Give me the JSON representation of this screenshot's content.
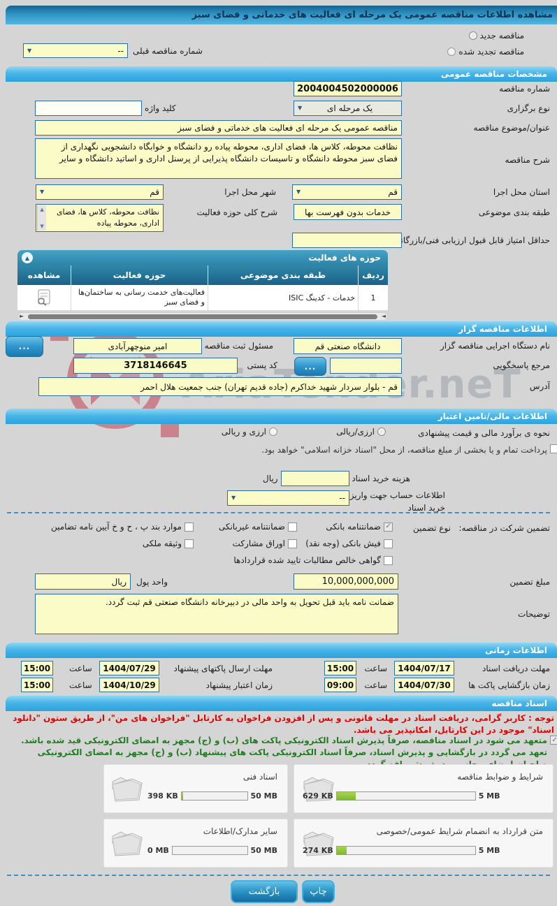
{
  "page": {
    "title": "مشاهده اطلاعات مناقصه عمومی یک مرحله ای فعالیت های خدماتی و فضای سبز"
  },
  "icons": {
    "dropdown": "▼",
    "collapse": "▲",
    "check": "✓",
    "arrow_left": "◄",
    "arrow_right": "►",
    "arrow_up": "▲",
    "arrow_down": "▼"
  },
  "top": {
    "radio_new": "مناقصه جدید",
    "radio_renewed": "مناقصه تجدید شده",
    "prev_number_label": "شماره مناقصه قبلی",
    "prev_number_value": "--"
  },
  "specs": {
    "header": "مشخصات مناقصه عمومی",
    "tender_no_label": "شماره مناقصه",
    "tender_no": "2004004502000006",
    "type_label": "نوع برگزاری",
    "type_value": "یک مرحله ای",
    "keyword_label": "کلید واژه",
    "keyword_value": "",
    "subject_label": "عنوان/موضوع مناقصه",
    "subject_value": "مناقصه عمومی یک مرحله ای فعالیت های خدماتی و فضای سبز",
    "desc_label": "شرح مناقصه",
    "desc_value": "نظافت محوطه، کلاس ها، فضای اداری، محوطه پیاده رو دانشگاه و خوابگاه دانشجویی نگهداری از فضای سبز محوطه دانشگاه و تاسیسات دانشگاه پذیرایی از پرسنل اداری و اساتید دانشگاه و سایر",
    "province_label": "استان محل اجرا",
    "province_value": "قم",
    "city_label": "شهر محل اجرا",
    "city_value": "قم",
    "category_label": "طبقه بندی موضوعی",
    "category_value": "خدمات بدون فهرست بها",
    "scope_label": "شرح کلی حوزه فعالیت",
    "scope_value": "نظافت محوطه، کلاس ها، فضای اداری، محوطه پیاده",
    "min_score_label": "حداقل امتیاز قابل قبول ارزیابی فنی/بازرگانی",
    "min_score_value": ""
  },
  "activity_table": {
    "header": "حوزه های فعالیت",
    "columns": [
      "ردیف",
      "طبقه بندی موضوعی",
      "حوزه فعالیت",
      "مشاهده"
    ],
    "rows": [
      {
        "index": "1",
        "category": "خدمات - کدینگ ISIC",
        "area": "فعالیت‌های خدمت رسانی به ساختمان‌ها و فضای سبز"
      }
    ]
  },
  "agency": {
    "header": "اطلاعات مناقصه گزار",
    "name_label": "نام دستگاه اجرایی مناقصه گزار",
    "name_value": "دانشگاه صنعتی قم",
    "registrar_label": "مسئول ثبت مناقصه",
    "registrar_value": "امیر منوچهرآبادی",
    "contact_label": "مرجع پاسخگویی",
    "contact_value": "",
    "postal_label": "کد پستی",
    "postal_value": "3718146645",
    "address_label": "آدرس",
    "address_value": "قم - بلوار سردار شهید خداکرم (جاده قدیم تهران) جنب جمعیت هلال احمر",
    "more_button": "..."
  },
  "financial": {
    "header": "اطلاعات مالی/تامین اعتبار",
    "estimate_label": "نحوه ی برآورد مالی و قیمت پیشنهادی",
    "radio_rial": "ارزی/ریالی",
    "radio_both": "ارزی و ریالی",
    "treasury_note": "پرداخت تمام و یا بخشی از مبلغ مناقصه، از محل \"اسناد خزانه اسلامی\" خواهد بود.",
    "doc_cost_label": "هزینه خرید اسناد",
    "doc_cost_value": "",
    "doc_cost_unit": "ریال",
    "account_label_line1": "اطلاعات حساب جهت واریز هزینه",
    "account_label_line2": "خرید اسناد",
    "account_value": "--"
  },
  "guarantee": {
    "title": "تضمین شرکت در مناقصه:",
    "type_label": "نوع تضمین",
    "opt_bank": "ضمانتنامه بانکی",
    "opt_nonbank": "ضمانتنامه غیربانکی",
    "opt_clauses": "موارد بند پ ، ح و خ آیین نامه تضامین",
    "opt_receipt": "فیش بانکی (وجه نقد)",
    "opt_bonds": "اوراق مشارکت",
    "opt_property": "وثیقه ملکی",
    "opt_claims": "گواهی خالص مطالبات تایید شده قراردادها",
    "amount_label": "مبلغ تضمین",
    "amount_value": "10,000,000,000",
    "currency_label": "واحد پول",
    "currency_value": "ریال",
    "notes_label": "توضیحات",
    "notes_value": "ضمانت نامه باید قبل تحویل به واحد مالی در دبیرخانه دانشگاه صنعتی قم ثبت گردد."
  },
  "schedule": {
    "header": "اطلاعات زمانی",
    "hour_label": "ساعت",
    "items": [
      {
        "label": "مهلت دریافت اسناد",
        "date": "1404/07/17",
        "time": "15:00"
      },
      {
        "label": "مهلت ارسال پاکتهای پیشنهاد",
        "date": "1404/07/29",
        "time": "15:00"
      },
      {
        "label": "زمان بازگشایی پاکت ها",
        "date": "1404/07/30",
        "time": "09:00"
      },
      {
        "label": "زمان اعتبار پیشنهاد",
        "date": "1404/10/29",
        "time": "15:00"
      }
    ]
  },
  "documents": {
    "header": "اسناد مناقصه",
    "notice_red": "توجه : کاربر گرامی، دریافت اسناد در مهلت قانونی و پس از افزودن فراخوان به کارتابل \"فراخوان های من\"، از طریق ستون \"دانلود اسناد\" موجود در این کارتابل، امکانپذیر می باشد.",
    "notice_green": "متعهد می شود در اسناد مناقصه، صرفاً پذیرش اسناد الکترونیکی پاکت های (ب) و (ج) مجهز به امضای الکترونیکی قید شده باشد. تعهد می گردد در بازگشایی و پذیرش اسناد، صرفاً اسناد الکترونیکی پاکت های پیشنهاد (ب) و (ج) مجهز به امضای الکترونیکی صاحبان امضای مجاز مورد پذیرش واقع گردد.",
    "cards": [
      {
        "title": "شرایط و ضوابط مناقصه",
        "size": "629 KB",
        "max": "5 MB",
        "pct": 14
      },
      {
        "title": "اسناد فنی",
        "size": "398 KB",
        "max": "50 MB",
        "pct": 2
      },
      {
        "title": "متن قرارداد به انضمام شرایط عمومی/خصوصی",
        "size": "274 KB",
        "max": "5 MB",
        "pct": 7
      },
      {
        "title": "سایر مدارک/اطلاعات",
        "size": "0 MB",
        "max": "50 MB",
        "pct": 0
      }
    ]
  },
  "footer": {
    "back": "بازگشت",
    "print": "چاپ"
  },
  "watermark": {
    "text": "AriaTender.neT"
  },
  "colors": {
    "accent": "#2ba1dc",
    "field_bg": "#fbfbc8",
    "progress_green": "#8cc63e",
    "notice_red": "#e60000",
    "notice_green": "#1e7d1e"
  }
}
